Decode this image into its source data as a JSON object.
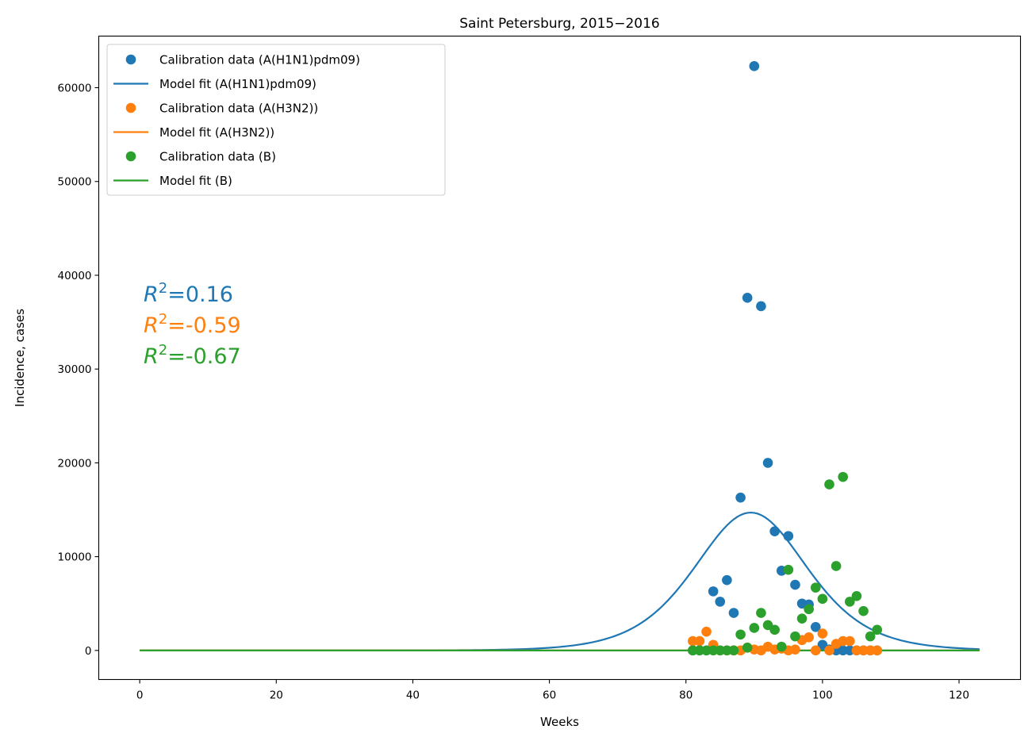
{
  "chart_data": {
    "type": "scatter",
    "title": "Saint Petersburg, 2015−2016",
    "xlabel": "Weeks",
    "ylabel": "Incidence, cases",
    "xlim": [
      -6,
      129
    ],
    "ylim": [
      -3100,
      65500
    ],
    "xticks": [
      0,
      20,
      40,
      60,
      80,
      100,
      120
    ],
    "yticks": [
      0,
      10000,
      20000,
      30000,
      40000,
      50000,
      60000
    ],
    "grid": false,
    "legend_position": "top-left",
    "legend": [
      {
        "label": "Calibration data (A(H1N1)pdm09)",
        "kind": "marker",
        "color": "#1f77b4"
      },
      {
        "label": "Model fit (A(H1N1)pdm09)",
        "kind": "line",
        "color": "#1f77b4"
      },
      {
        "label": "Calibration data (A(H3N2))",
        "kind": "marker",
        "color": "#ff7f0e"
      },
      {
        "label": "Model fit (A(H3N2))",
        "kind": "line",
        "color": "#ff7f0e"
      },
      {
        "label": "Calibration data (B)",
        "kind": "marker",
        "color": "#2ca02c"
      },
      {
        "label": "Model fit (B)",
        "kind": "line",
        "color": "#2ca02c"
      }
    ],
    "annotations": [
      {
        "prefix": "R",
        "sup": "2",
        "value": "=0.16",
        "color": "#1f77b4"
      },
      {
        "prefix": "R",
        "sup": "2",
        "value": "=-0.59",
        "color": "#ff7f0e"
      },
      {
        "prefix": "R",
        "sup": "2",
        "value": "=-0.67",
        "color": "#2ca02c"
      }
    ],
    "series": [
      {
        "name": "Calibration data (A(H1N1)pdm09)",
        "kind": "scatter",
        "color": "#1f77b4",
        "x": [
          81,
          82,
          83,
          84,
          85,
          86,
          87,
          88,
          89,
          90,
          91,
          92,
          93,
          94,
          95,
          96,
          97,
          98,
          99,
          100,
          101,
          102,
          103,
          104,
          105,
          106,
          107,
          108
        ],
        "y": [
          0,
          0,
          0,
          6300,
          5200,
          7500,
          4000,
          16300,
          37600,
          62300,
          36700,
          20000,
          12700,
          8500,
          12200,
          7000,
          5000,
          4900,
          2500,
          600,
          100,
          0,
          0,
          0,
          0,
          0,
          0,
          0
        ]
      },
      {
        "name": "Model fit (A(H1N1)pdm09)",
        "kind": "line",
        "color": "#1f77b4",
        "peak_x": 89.5,
        "peak_y": 14700,
        "width": 11.1,
        "x_start": 0,
        "x_end": 123
      },
      {
        "name": "Calibration data (A(H3N2))",
        "kind": "scatter",
        "color": "#ff7f0e",
        "x": [
          81,
          82,
          83,
          84,
          85,
          86,
          87,
          88,
          89,
          90,
          91,
          92,
          93,
          94,
          95,
          96,
          97,
          98,
          99,
          100,
          101,
          102,
          103,
          104,
          105,
          106,
          107,
          108
        ],
        "y": [
          1000,
          1000,
          2000,
          600,
          0,
          0,
          0,
          0,
          300,
          100,
          0,
          400,
          100,
          200,
          0,
          100,
          1100,
          1400,
          0,
          1800,
          0,
          700,
          1000,
          1000,
          0,
          0,
          0,
          0
        ]
      },
      {
        "name": "Model fit (A(H3N2))",
        "kind": "line",
        "color": "#ff7f0e",
        "x": [
          0,
          123
        ],
        "y": [
          0,
          0
        ]
      },
      {
        "name": "Calibration data (B)",
        "kind": "scatter",
        "color": "#2ca02c",
        "x": [
          81,
          82,
          83,
          84,
          85,
          86,
          87,
          88,
          89,
          90,
          91,
          92,
          93,
          94,
          95,
          96,
          97,
          98,
          99,
          100,
          101,
          102,
          103,
          104,
          105,
          106,
          107,
          108
        ],
        "y": [
          0,
          0,
          0,
          0,
          0,
          0,
          0,
          1700,
          300,
          2400,
          4000,
          2700,
          2200,
          400,
          8600,
          1500,
          3400,
          4400,
          6700,
          5500,
          17700,
          9000,
          18500,
          5200,
          5800,
          4200,
          1500,
          2200
        ]
      },
      {
        "name": "Model fit (B)",
        "kind": "line",
        "color": "#2ca02c",
        "x": [
          0,
          123
        ],
        "y": [
          0,
          0
        ]
      }
    ]
  }
}
